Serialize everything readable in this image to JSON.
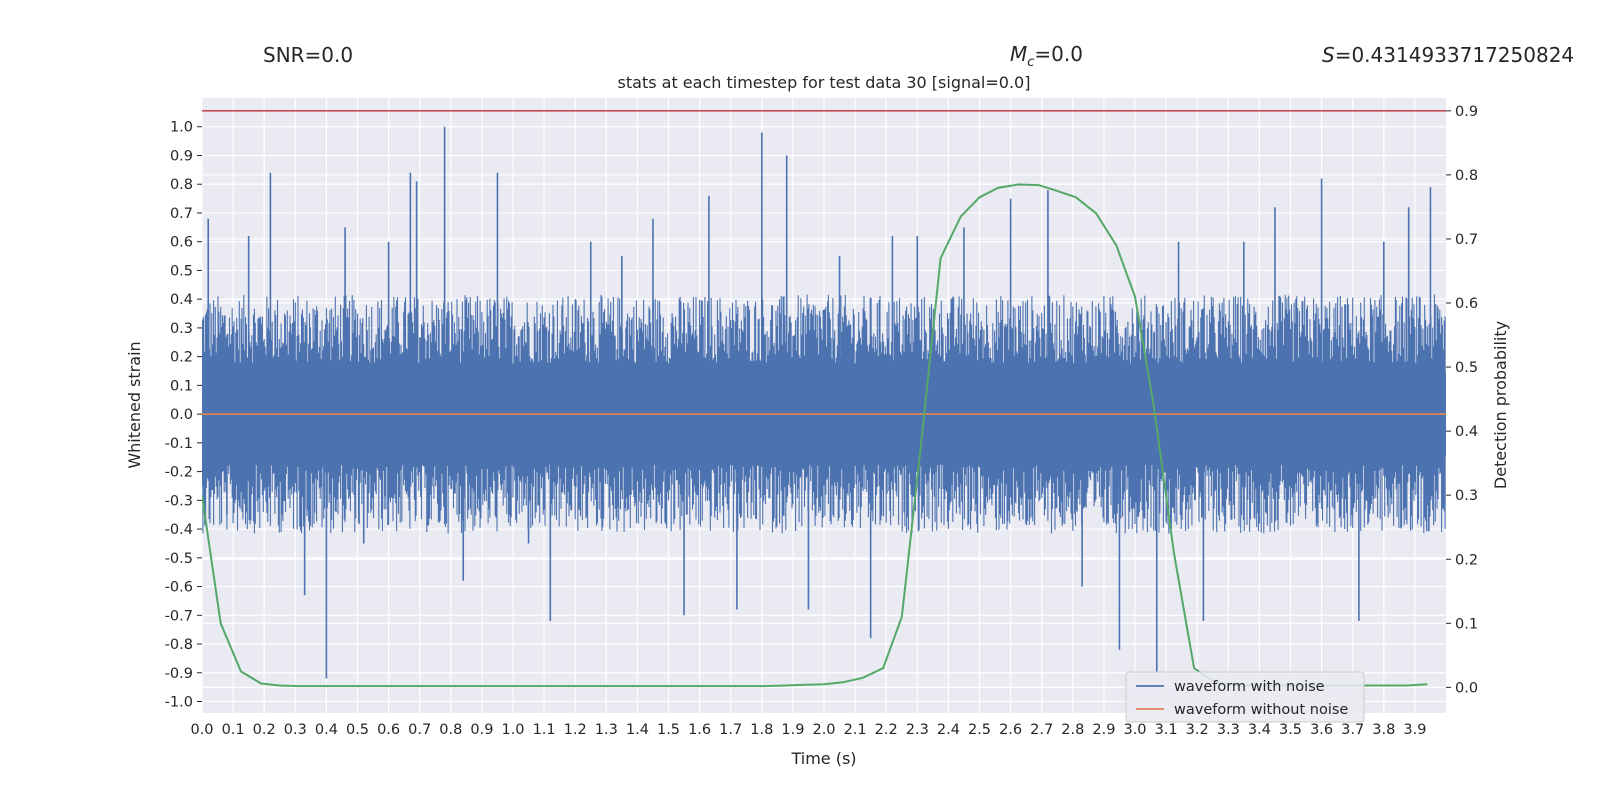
{
  "chart_data": {
    "type": "line",
    "header": {
      "snr_label": "SNR=0.0",
      "mc_symbol": "M",
      "mc_sub": "c",
      "mc_value": "=0.0",
      "s_symbol": "S",
      "s_value": "=0.4314933717250824"
    },
    "title": "stats at each timestep for test data 30 [signal=0.0]",
    "xlabel": "Time (s)",
    "ylabel_left": "Whitened strain",
    "ylabel_right": "Detection probability",
    "xlim": [
      0.0,
      4.0
    ],
    "ylim_left": [
      -1.04,
      1.1
    ],
    "ylim_right": [
      -0.04,
      0.92
    ],
    "x_ticks": [
      "0.0",
      "0.1",
      "0.2",
      "0.3",
      "0.4",
      "0.5",
      "0.6",
      "0.7",
      "0.8",
      "0.9",
      "1.0",
      "1.1",
      "1.2",
      "1.3",
      "1.4",
      "1.5",
      "1.6",
      "1.7",
      "1.8",
      "1.9",
      "2.0",
      "2.1",
      "2.2",
      "2.3",
      "2.4",
      "2.5",
      "2.6",
      "2.7",
      "2.8",
      "2.9",
      "3.0",
      "3.1",
      "3.2",
      "3.3",
      "3.4",
      "3.5",
      "3.6",
      "3.7",
      "3.8",
      "3.9"
    ],
    "y_ticks_left": [
      "1.0",
      "0.9",
      "0.8",
      "0.7",
      "0.6",
      "0.5",
      "0.4",
      "0.3",
      "0.2",
      "0.1",
      "0.0",
      "-0.1",
      "-0.2",
      "-0.3",
      "-0.4",
      "-0.5",
      "-0.6",
      "-0.7",
      "-0.8",
      "-0.9",
      "-1.0"
    ],
    "y_ticks_right": [
      "0.9",
      "0.8",
      "0.7",
      "0.6",
      "0.5",
      "0.4",
      "0.3",
      "0.2",
      "0.1",
      "0.0"
    ],
    "threshold": {
      "value": 0.9,
      "axis": "right",
      "color": "#c44e52"
    },
    "series": [
      {
        "name": "waveform with noise",
        "axis": "left",
        "color": "#4c72b0",
        "spike_times": [
          0.02,
          0.08,
          0.15,
          0.22,
          0.33,
          0.4,
          0.46,
          0.52,
          0.6,
          0.67,
          0.69,
          0.78,
          0.84,
          0.95,
          1.05,
          1.12,
          1.25,
          1.35,
          1.45,
          1.55,
          1.63,
          1.72,
          1.8,
          1.88,
          1.95,
          2.05,
          2.15,
          2.22,
          2.3,
          2.45,
          2.6,
          2.72,
          2.83,
          2.95,
          3.07,
          3.14,
          3.22,
          3.35,
          3.45,
          3.6,
          3.72,
          3.8,
          3.88,
          3.95
        ],
        "spike_values": [
          0.68,
          -0.35,
          0.62,
          0.84,
          -0.63,
          -0.92,
          0.65,
          -0.45,
          0.6,
          0.84,
          0.81,
          1.0,
          -0.58,
          0.84,
          -0.45,
          -0.72,
          0.6,
          0.55,
          0.68,
          -0.7,
          0.76,
          -0.68,
          0.98,
          0.9,
          -0.68,
          0.55,
          -0.78,
          0.62,
          0.62,
          0.65,
          0.75,
          0.78,
          -0.6,
          -0.82,
          -0.9,
          0.6,
          -0.72,
          0.6,
          0.72,
          0.82,
          -0.72,
          0.6,
          0.72,
          0.79
        ],
        "envelope": 0.32
      },
      {
        "name": "waveform without noise",
        "axis": "left",
        "color": "#dd8452",
        "x": [
          0.0,
          4.0
        ],
        "y": [
          0.0,
          0.0
        ]
      },
      {
        "name": "",
        "axis": "right",
        "color": "#55a868",
        "x": [
          0.0,
          0.06,
          0.125,
          0.19,
          0.25,
          0.31,
          0.375,
          0.44,
          0.5,
          0.56,
          0.625,
          0.69,
          0.75,
          0.81,
          0.875,
          0.94,
          1.0,
          1.06,
          1.125,
          1.19,
          1.25,
          1.31,
          1.375,
          1.44,
          1.5,
          1.56,
          1.625,
          1.69,
          1.75,
          1.81,
          1.875,
          1.94,
          2.0,
          2.06,
          2.125,
          2.19,
          2.25,
          2.31,
          2.375,
          2.44,
          2.5,
          2.56,
          2.625,
          2.69,
          2.75,
          2.81,
          2.875,
          2.94,
          3.0,
          3.06,
          3.125,
          3.19,
          3.25,
          3.31,
          3.375,
          3.44,
          3.5,
          3.56,
          3.625,
          3.69,
          3.75,
          3.81,
          3.875,
          3.94
        ],
        "y": [
          0.3,
          0.1,
          0.025,
          0.006,
          0.003,
          0.002,
          0.002,
          0.002,
          0.002,
          0.002,
          0.002,
          0.002,
          0.002,
          0.002,
          0.002,
          0.002,
          0.002,
          0.002,
          0.002,
          0.002,
          0.002,
          0.002,
          0.002,
          0.002,
          0.002,
          0.002,
          0.002,
          0.002,
          0.002,
          0.002,
          0.003,
          0.004,
          0.005,
          0.008,
          0.015,
          0.03,
          0.11,
          0.37,
          0.67,
          0.735,
          0.765,
          0.78,
          0.785,
          0.784,
          0.775,
          0.765,
          0.74,
          0.69,
          0.61,
          0.44,
          0.21,
          0.03,
          0.01,
          0.004,
          0.003,
          0.003,
          0.003,
          0.003,
          0.003,
          0.003,
          0.003,
          0.003,
          0.003,
          0.005
        ]
      }
    ],
    "legend": {
      "placement": "lower-right",
      "entries": [
        "waveform with noise",
        "waveform without noise"
      ]
    },
    "grid": true
  }
}
